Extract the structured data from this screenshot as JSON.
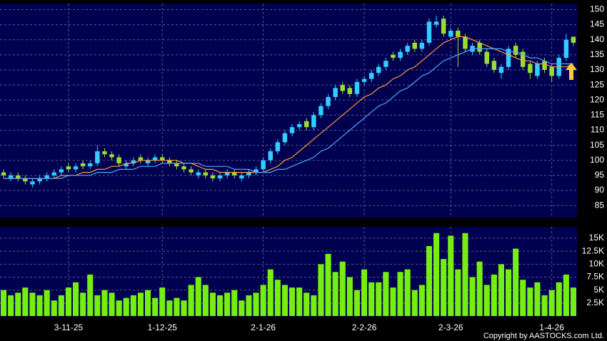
{
  "chart_data": [
    {
      "type": "candlestick",
      "open": [
        96,
        94,
        95,
        94,
        92,
        93,
        94,
        95,
        96,
        98,
        97,
        99,
        98,
        99,
        103,
        102,
        101,
        98,
        99,
        101,
        99,
        100,
        101,
        100,
        99,
        98,
        97,
        95,
        96,
        95,
        94,
        95,
        96,
        94,
        95,
        96,
        97,
        100,
        103,
        106,
        109,
        111,
        113,
        111,
        115,
        118,
        121,
        125,
        124,
        122,
        126,
        127,
        129,
        131,
        135,
        134,
        136,
        139,
        137,
        139,
        145,
        147,
        141,
        143,
        141,
        136,
        139,
        136,
        133,
        129,
        131,
        138,
        136,
        132,
        128,
        133,
        131,
        128,
        134,
        141
      ],
      "high": [
        97,
        96,
        96,
        95,
        94,
        95,
        96,
        97,
        98,
        99,
        99,
        100,
        100,
        105,
        104,
        103,
        102,
        100,
        101,
        102,
        101,
        102,
        102,
        101,
        100,
        99,
        98,
        97,
        97,
        96,
        96,
        97,
        97,
        96,
        97,
        98,
        101,
        104,
        107,
        110,
        112,
        113,
        114,
        116,
        119,
        122,
        125,
        126,
        125,
        127,
        128,
        130,
        132,
        134,
        136,
        137,
        139,
        140,
        140,
        147,
        148,
        148,
        144,
        144,
        142,
        139,
        140,
        137,
        134,
        132,
        138,
        139,
        137,
        133,
        133,
        134,
        132,
        135,
        142,
        141
      ],
      "low": [
        94,
        93,
        93,
        92,
        91,
        92,
        93,
        94,
        95,
        96,
        96,
        97,
        97,
        98,
        101,
        100,
        98,
        97,
        98,
        99,
        98,
        99,
        99,
        98,
        97,
        96,
        95,
        94,
        94,
        93,
        93,
        94,
        94,
        93,
        94,
        95,
        96,
        99,
        102,
        105,
        108,
        110,
        110,
        110,
        114,
        117,
        120,
        122,
        121,
        121,
        125,
        126,
        128,
        130,
        133,
        133,
        135,
        136,
        136,
        138,
        144,
        141,
        140,
        131,
        136,
        135,
        135,
        131,
        129,
        127,
        130,
        134,
        130,
        127,
        127,
        129,
        126,
        127,
        133,
        138
      ],
      "close": [
        95,
        95,
        94,
        93,
        93,
        94,
        95,
        96,
        97,
        97,
        98,
        98,
        99,
        103,
        102,
        101,
        99,
        99,
        100,
        100,
        100,
        101,
        100,
        99,
        98,
        97,
        96,
        96,
        95,
        94,
        95,
        96,
        95,
        95,
        96,
        97,
        100,
        103,
        106,
        109,
        111,
        112,
        111,
        115,
        118,
        121,
        124,
        123,
        122,
        126,
        127,
        129,
        131,
        133,
        134,
        136,
        138,
        137,
        139,
        146,
        146,
        142,
        143,
        141,
        137,
        138,
        136,
        132,
        130,
        131,
        137,
        135,
        131,
        129,
        132,
        130,
        128,
        134,
        140,
        139
      ],
      "up_color": "#33ccff",
      "down_color": "#99dd33",
      "lines": [
        {
          "color": "#ff9933",
          "values": [
            94,
            94,
            94,
            94,
            94,
            94,
            94,
            94,
            95,
            95,
            95,
            96,
            96,
            97,
            97,
            98,
            98,
            99,
            99,
            100,
            100,
            100,
            100,
            100,
            100,
            99,
            99,
            98,
            97,
            97,
            96,
            96,
            96,
            96,
            96,
            96,
            96,
            97,
            98,
            100,
            101,
            103,
            105,
            107,
            109,
            111,
            113,
            115,
            117,
            119,
            121,
            122,
            124,
            125,
            127,
            128,
            130,
            131,
            133,
            135,
            137,
            139,
            140,
            141,
            141,
            140,
            139,
            138,
            137,
            136,
            135,
            134,
            133,
            133,
            132,
            132,
            131,
            131,
            131,
            132
          ]
        },
        {
          "color": "#4da6ff",
          "values": [
            94,
            94,
            94,
            94,
            94,
            94,
            94,
            94,
            94,
            95,
            95,
            95,
            95,
            96,
            96,
            96,
            97,
            97,
            97,
            98,
            98,
            98,
            99,
            99,
            99,
            99,
            99,
            99,
            98,
            98,
            98,
            98,
            97,
            97,
            97,
            96,
            96,
            96,
            97,
            97,
            98,
            99,
            100,
            101,
            103,
            104,
            106,
            108,
            110,
            112,
            114,
            116,
            118,
            119,
            121,
            123,
            124,
            126,
            128,
            129,
            131,
            133,
            134,
            135,
            136,
            137,
            137,
            137,
            137,
            137,
            136,
            136,
            135,
            134,
            134,
            133,
            132,
            132,
            132,
            132
          ]
        }
      ],
      "ylim": [
        81,
        152
      ],
      "yticks": [
        85,
        90,
        95,
        100,
        105,
        110,
        115,
        120,
        125,
        130,
        135,
        140,
        145,
        150
      ],
      "grid": true
    },
    {
      "type": "bar",
      "categories": [
        null,
        null,
        null,
        null,
        null,
        null,
        null,
        null,
        null,
        "3-11-25",
        null,
        null,
        null,
        null,
        null,
        null,
        null,
        null,
        null,
        null,
        null,
        null,
        "1-12-25",
        null,
        null,
        null,
        null,
        null,
        null,
        null,
        null,
        null,
        null,
        null,
        null,
        null,
        "2-1-26",
        null,
        null,
        null,
        null,
        null,
        null,
        null,
        null,
        null,
        null,
        null,
        null,
        null,
        "2-2-26",
        null,
        null,
        null,
        null,
        null,
        null,
        null,
        null,
        null,
        null,
        null,
        "2-3-26",
        null,
        null,
        null,
        null,
        null,
        null,
        null,
        null,
        null,
        null,
        null,
        null,
        null,
        "1-4-26",
        null,
        null,
        null
      ],
      "values": [
        5000,
        4000,
        4500,
        5500,
        4500,
        4000,
        5000,
        3000,
        4000,
        5500,
        6500,
        4500,
        8000,
        4000,
        5000,
        4500,
        3000,
        3500,
        4000,
        4500,
        5000,
        3500,
        5500,
        3000,
        3500,
        3000,
        6000,
        7500,
        6000,
        4500,
        4000,
        4500,
        5000,
        3000,
        4000,
        4500,
        6000,
        9000,
        7000,
        6000,
        5500,
        5500,
        4500,
        4000,
        10000,
        12000,
        8500,
        10500,
        7500,
        5000,
        9000,
        6500,
        6500,
        8500,
        5500,
        8500,
        9000,
        5000,
        6000,
        13500,
        16000,
        11000,
        15500,
        9000,
        16000,
        7500,
        10500,
        6000,
        8000,
        10000,
        9000,
        13000,
        7000,
        5500,
        6500,
        4000,
        5000,
        6500,
        8000,
        5500
      ],
      "color": "#77ee11",
      "ylim": [
        0,
        17200
      ],
      "yticks": [
        {
          "value": 2500,
          "label": "2.5K"
        },
        {
          "value": 5000,
          "label": "5K"
        },
        {
          "value": 7500,
          "label": "7.5K"
        },
        {
          "value": 10000,
          "label": "10K"
        },
        {
          "value": 12500,
          "label": "12.5K"
        },
        {
          "value": 15000,
          "label": "15K"
        }
      ],
      "grid": true
    }
  ],
  "copyright": "Copyright by AASTOCKS.com Ltd."
}
